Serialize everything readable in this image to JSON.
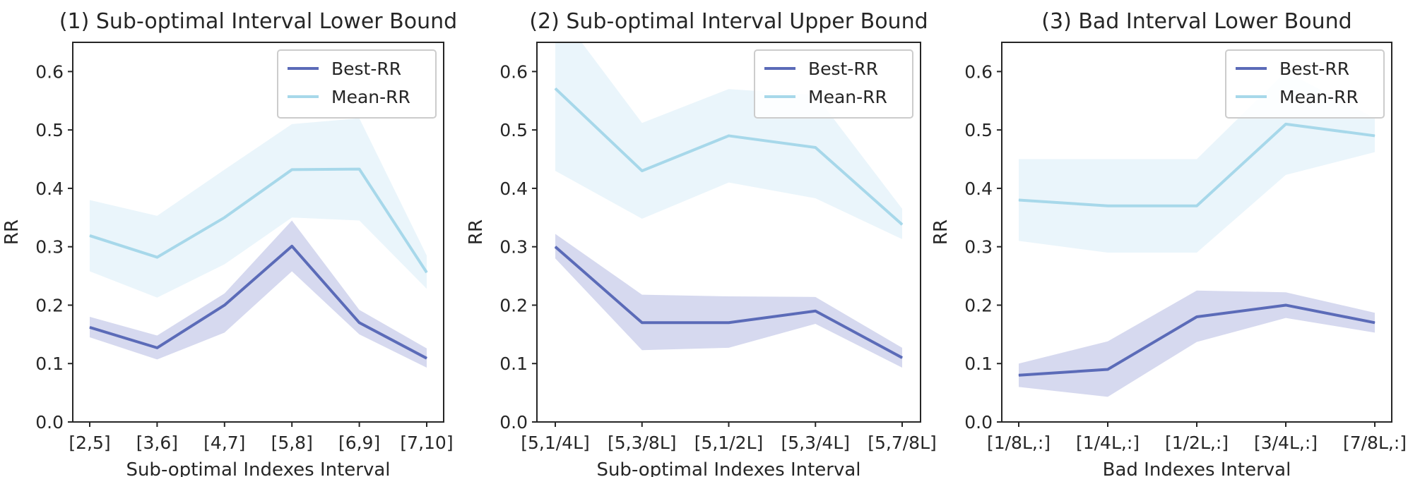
{
  "chart_data": [
    {
      "type": "line",
      "title": "(1) Sub-optimal Interval Lower Bound",
      "xlabel": "Sub-optimal Indexes Interval",
      "ylabel": "RR",
      "categories": [
        "[2,5]",
        "[3,6]",
        "[4,7]",
        "[5,8]",
        "[6,9]",
        "[7,10]"
      ],
      "ylim": [
        0,
        0.65
      ],
      "yticks": [
        "0.0",
        "0.1",
        "0.2",
        "0.3",
        "0.4",
        "0.5",
        "0.6"
      ],
      "legend_position": "top-right",
      "grid": false,
      "series": [
        {
          "name": "Best-RR",
          "color": "#5b6bb8",
          "band_color": "#d6d9ef",
          "values": [
            0.162,
            0.127,
            0.2,
            0.301,
            0.17,
            0.109
          ],
          "lower": [
            0.145,
            0.107,
            0.153,
            0.258,
            0.15,
            0.093
          ],
          "upper": [
            0.18,
            0.148,
            0.22,
            0.345,
            0.192,
            0.126
          ]
        },
        {
          "name": "Mean-RR",
          "color": "#a7d8ea",
          "band_color": "#eaf5fb",
          "values": [
            0.319,
            0.282,
            0.35,
            0.432,
            0.433,
            0.256
          ],
          "lower": [
            0.258,
            0.213,
            0.27,
            0.35,
            0.345,
            0.228
          ],
          "upper": [
            0.38,
            0.353,
            0.432,
            0.51,
            0.52,
            0.285
          ]
        }
      ]
    },
    {
      "type": "line",
      "title": "(2) Sub-optimal Interval Upper Bound",
      "xlabel": "Sub-optimal Indexes Interval",
      "ylabel": "RR",
      "categories": [
        "[5,1/4L]",
        "[5,3/8L]",
        "[5,1/2L]",
        "[5,3/4L]",
        "[5,7/8L]"
      ],
      "ylim": [
        0,
        0.65
      ],
      "yticks": [
        "0.0",
        "0.1",
        "0.2",
        "0.3",
        "0.4",
        "0.5",
        "0.6"
      ],
      "legend_position": "top-right",
      "grid": false,
      "series": [
        {
          "name": "Best-RR",
          "color": "#5b6bb8",
          "band_color": "#d6d9ef",
          "values": [
            0.3,
            0.17,
            0.17,
            0.19,
            0.11
          ],
          "lower": [
            0.28,
            0.123,
            0.127,
            0.168,
            0.093
          ],
          "upper": [
            0.322,
            0.218,
            0.215,
            0.214,
            0.127
          ]
        },
        {
          "name": "Mean-RR",
          "color": "#a7d8ea",
          "band_color": "#eaf5fb",
          "values": [
            0.571,
            0.43,
            0.49,
            0.47,
            0.338
          ],
          "lower": [
            0.43,
            0.348,
            0.41,
            0.383,
            0.313
          ],
          "upper": [
            0.71,
            0.512,
            0.57,
            0.56,
            0.365
          ]
        }
      ]
    },
    {
      "type": "line",
      "title": "(3) Bad Interval Lower Bound",
      "xlabel": "Bad Indexes Interval",
      "ylabel": "RR",
      "categories": [
        "[1/8L,:]",
        "[1/4L,:]",
        "[1/2L,:]",
        "[3/4L,:]",
        "[7/8L,:]"
      ],
      "ylim": [
        0,
        0.65
      ],
      "yticks": [
        "0.0",
        "0.1",
        "0.2",
        "0.3",
        "0.4",
        "0.5",
        "0.6"
      ],
      "legend_position": "top-right",
      "grid": false,
      "series": [
        {
          "name": "Best-RR",
          "color": "#5b6bb8",
          "band_color": "#d6d9ef",
          "values": [
            0.08,
            0.09,
            0.18,
            0.2,
            0.17
          ],
          "lower": [
            0.06,
            0.043,
            0.137,
            0.178,
            0.153
          ],
          "upper": [
            0.1,
            0.138,
            0.225,
            0.222,
            0.187
          ]
        },
        {
          "name": "Mean-RR",
          "color": "#a7d8ea",
          "band_color": "#eaf5fb",
          "values": [
            0.38,
            0.37,
            0.37,
            0.51,
            0.49
          ],
          "lower": [
            0.31,
            0.29,
            0.29,
            0.423,
            0.462
          ],
          "upper": [
            0.45,
            0.45,
            0.45,
            0.6,
            0.52
          ]
        }
      ]
    }
  ]
}
